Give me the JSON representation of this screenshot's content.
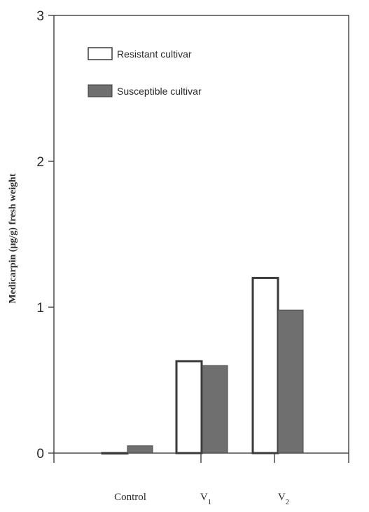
{
  "chart_data": {
    "type": "bar",
    "title": "",
    "xlabel": "",
    "ylabel": "Medicarpin (μg/g) fresh weight",
    "categories": [
      {
        "base": "Control",
        "sub": ""
      },
      {
        "base": "V",
        "sub": "1"
      },
      {
        "base": "V",
        "sub": "2"
      }
    ],
    "series": [
      {
        "name": "Resistant cultivar",
        "values": [
          0.0,
          0.63,
          1.2
        ],
        "color": "#ffffff"
      },
      {
        "name": "Susceptible cultivar",
        "values": [
          0.05,
          0.6,
          0.98
        ],
        "color": "#6f6f6f"
      }
    ],
    "ylim": [
      0,
      3
    ],
    "yticks": [
      "0",
      "1",
      "2",
      "3"
    ],
    "grid": false,
    "legend_position": "top-left"
  }
}
